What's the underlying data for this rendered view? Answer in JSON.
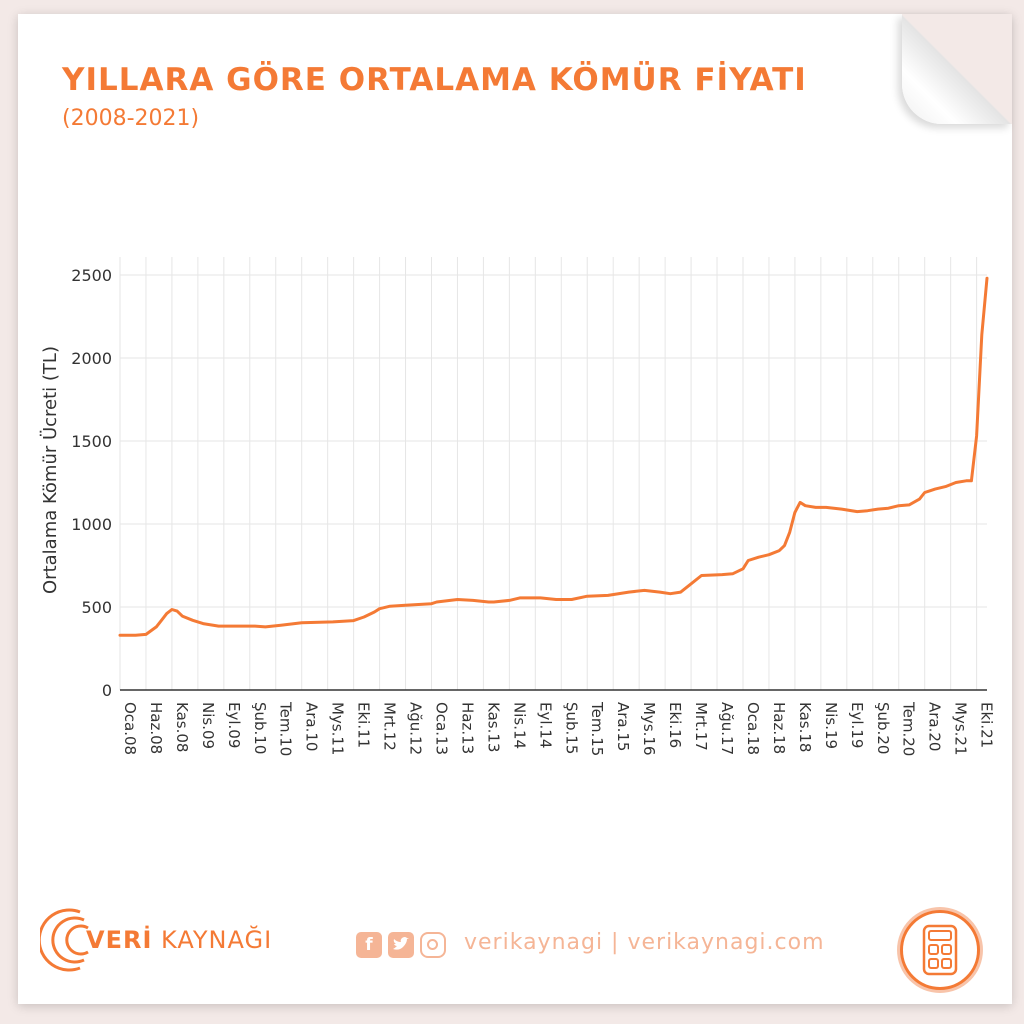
{
  "header": {
    "title": "YILLARA GÖRE ORTALAMA KÖMÜR FİYATI",
    "subtitle": "(2008-2021)"
  },
  "footer": {
    "brand_bold": "VERİ",
    "brand_rest": " KAYNAĞI",
    "site": "verikaynagi | verikaynagi.com",
    "icons": [
      "facebook-icon",
      "twitter-icon",
      "instagram-icon",
      "calculator-icon"
    ]
  },
  "colors": {
    "accent": "#f47a35",
    "line": "#f47a35",
    "grid": "#e6e6e6",
    "muted": "#f5b596"
  },
  "chart_data": {
    "type": "line",
    "title": "",
    "xlabel": "",
    "ylabel": "Ortalama Kömür Ücreti (TL)",
    "ylim": [
      0,
      2500
    ],
    "yticks": [
      0,
      500,
      1000,
      1500,
      2000,
      2500
    ],
    "grid": true,
    "x_tick_labels": [
      "Oca.08",
      "Haz.08",
      "Kas.08",
      "Nis.09",
      "Eyl.09",
      "Şub.10",
      "Tem.10",
      "Ara.10",
      "Mys.11",
      "Eki.11",
      "Mrt.12",
      "Ağu.12",
      "Oca.13",
      "Haz.13",
      "Kas.13",
      "Nis.14",
      "Eyl.14",
      "Şub.15",
      "Tem.15",
      "Ara.15",
      "Mys.16",
      "Eki.16",
      "Mrt.17",
      "Ağu.17",
      "Oca.18",
      "Haz.18",
      "Kas.18",
      "Nis.19",
      "Eyl.19",
      "Şub.20",
      "Tem.20",
      "Ara.20",
      "Mys.21",
      "Eki.21"
    ],
    "x_months": [
      "2008-01",
      "2008-06",
      "2008-11",
      "2009-04",
      "2009-09",
      "2010-02",
      "2010-07",
      "2010-12",
      "2011-05",
      "2011-10",
      "2012-03",
      "2012-08",
      "2013-01",
      "2013-06",
      "2013-11",
      "2014-04",
      "2014-09",
      "2015-02",
      "2015-07",
      "2015-12",
      "2016-05",
      "2016-10",
      "2017-03",
      "2017-08",
      "2018-01",
      "2018-06",
      "2018-11",
      "2019-04",
      "2019-09",
      "2020-02",
      "2020-07",
      "2020-12",
      "2021-05",
      "2021-10"
    ],
    "series": [
      {
        "x": [
          "2008-01",
          "2008-04",
          "2008-06",
          "2008-08",
          "2008-09",
          "2008-10",
          "2008-11",
          "2008-12",
          "2009-01",
          "2009-03",
          "2009-05",
          "2009-08",
          "2009-12",
          "2010-02",
          "2010-03",
          "2010-05",
          "2010-08",
          "2010-12",
          "2011-06",
          "2011-10",
          "2011-12",
          "2012-02",
          "2012-03",
          "2012-05",
          "2012-08",
          "2013-01",
          "2013-02",
          "2013-06",
          "2013-09",
          "2013-12",
          "2014-01",
          "2014-04",
          "2014-06",
          "2014-10",
          "2015-01",
          "2015-04",
          "2015-07",
          "2015-11",
          "2016-03",
          "2016-06",
          "2016-09",
          "2016-11",
          "2017-01",
          "2017-03",
          "2017-05",
          "2017-09",
          "2017-11",
          "2018-01",
          "2018-02",
          "2018-04",
          "2018-06",
          "2018-08",
          "2018-09",
          "2018-10",
          "2018-11",
          "2018-12",
          "2019-01",
          "2019-03",
          "2019-05",
          "2019-08",
          "2019-11",
          "2020-01",
          "2020-03",
          "2020-05",
          "2020-07",
          "2020-09",
          "2020-11",
          "2020-12",
          "2021-01",
          "2021-02",
          "2021-04",
          "2021-06",
          "2021-08",
          "2021-09",
          "2021-10",
          "2021-11",
          "2021-12"
        ],
        "y": [
          330,
          330,
          335,
          380,
          420,
          460,
          485,
          475,
          445,
          420,
          400,
          385,
          385,
          385,
          385,
          380,
          390,
          405,
          410,
          418,
          440,
          470,
          490,
          505,
          510,
          520,
          530,
          545,
          540,
          530,
          530,
          540,
          555,
          555,
          545,
          545,
          565,
          570,
          590,
          600,
          590,
          580,
          590,
          640,
          690,
          695,
          700,
          730,
          780,
          800,
          815,
          840,
          870,
          950,
          1070,
          1130,
          1110,
          1100,
          1100,
          1090,
          1075,
          1080,
          1090,
          1095,
          1110,
          1115,
          1150,
          1190,
          1200,
          1210,
          1225,
          1250,
          1260,
          1260,
          1530,
          2140,
          2480
        ]
      }
    ]
  }
}
